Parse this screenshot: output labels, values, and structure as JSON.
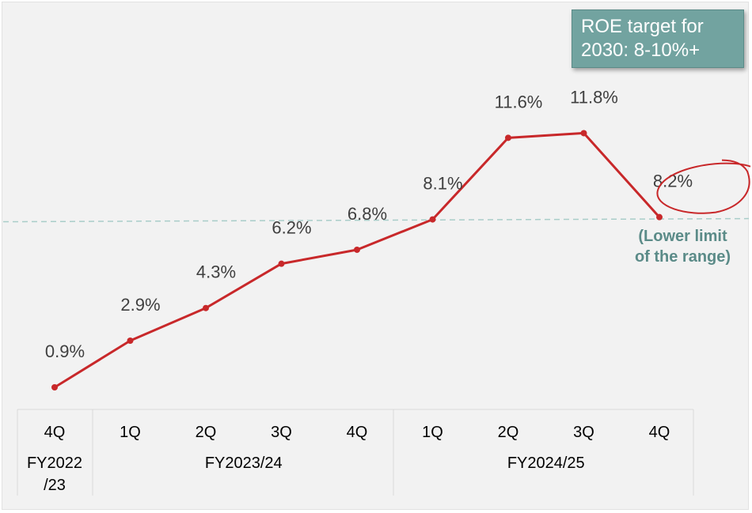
{
  "chart_data": {
    "type": "line",
    "categories": [
      "4Q",
      "1Q",
      "2Q",
      "3Q",
      "4Q",
      "1Q",
      "2Q",
      "3Q",
      "4Q"
    ],
    "groups": [
      {
        "label": "FY2022\n/23",
        "span": 1
      },
      {
        "label": "FY2023/24",
        "span": 4
      },
      {
        "label": "FY2024/25",
        "span": 4
      }
    ],
    "series": [
      {
        "values": [
          0.9,
          2.9,
          4.3,
          6.2,
          6.8,
          8.1,
          11.6,
          11.8,
          8.2
        ]
      }
    ],
    "data_labels": [
      "0.9%",
      "2.9%",
      "4.3%",
      "6.2%",
      "6.8%",
      "8.1%",
      "11.6%",
      "11.8%",
      "8.2%"
    ],
    "reference_line": {
      "value": 8.0
    },
    "ylim": [
      0.0,
      13.0
    ],
    "title": "",
    "xlabel": "",
    "ylabel": "",
    "grid": false
  },
  "annotations": {
    "target_box": "ROE target for\n2030: 8-10%+",
    "lower_limit": "(Lower limit\nof the range)",
    "highlight_circle_index": 8
  },
  "colors": {
    "line": "#c8282a",
    "highlight_circle": "#c8282a",
    "reference_line": "#a9cdc9",
    "target_box": "#72a3a0",
    "lower_limit_text": "#5b8b88",
    "label_text": "#404040"
  }
}
